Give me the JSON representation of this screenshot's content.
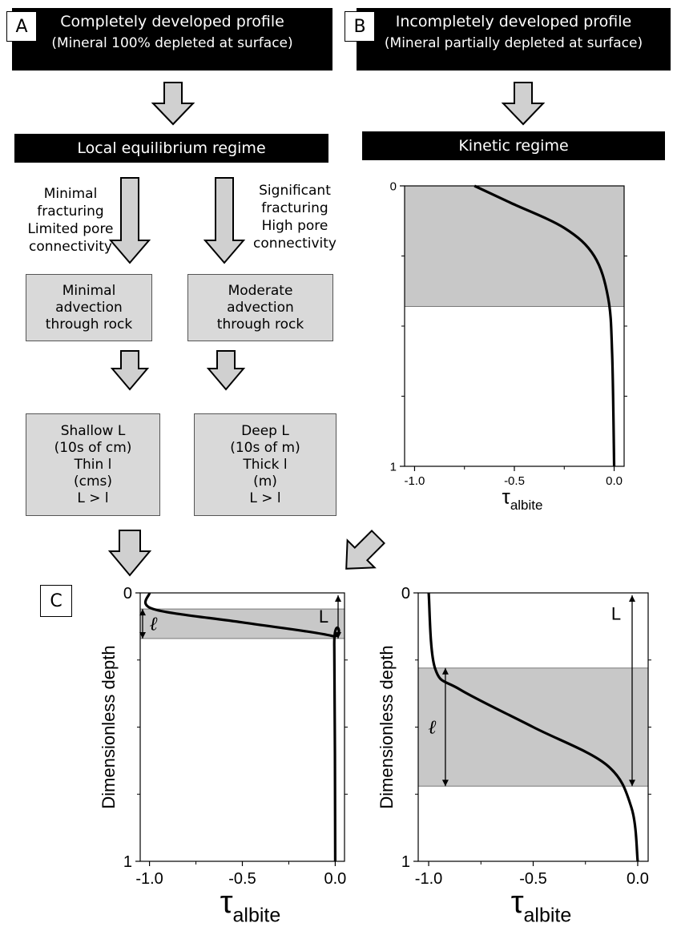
{
  "panel_a": {
    "letter": "A",
    "title": "Completely developed  profile",
    "subtitle": "(Mineral 100% depleted at surface)",
    "regime": "Local equilibrium regime",
    "left_condition": [
      "Minimal",
      "fracturing",
      "Limited pore",
      "connectivity"
    ],
    "right_condition": [
      "Significant",
      "fracturing",
      "High pore",
      "connectivity"
    ],
    "left_advection": [
      "Minimal",
      "advection",
      "through rock"
    ],
    "right_advection": [
      "Moderate",
      "advection",
      "through rock"
    ],
    "left_result": [
      "Shallow L",
      "(10s of cm)",
      "Thin l",
      "(cms)",
      "L > l"
    ],
    "right_result": [
      "Deep L",
      "(10s of m)",
      "Thick  l",
      "(m)",
      "L > l"
    ]
  },
  "panel_b": {
    "letter": "B",
    "title": "Incompletely developed  profile",
    "subtitle": "(Mineral partially depleted at surface)",
    "regime": "Kinetic  regime"
  },
  "panel_c": {
    "letter": "C"
  },
  "colors": {
    "shade": "#c8c8c8",
    "box_fill": "#d9d9d9",
    "arrow_fill": "#d0d0d0",
    "bar": "#000000"
  },
  "chart_data": [
    {
      "type": "line",
      "panel": "B",
      "xlabel": "τalbite",
      "xlim": [
        -1.05,
        0.05
      ],
      "ylim": [
        0,
        1
      ],
      "x_ticks": [
        "-1.0",
        "-0.5",
        "0.0"
      ],
      "y_ticks": [
        "0",
        "1"
      ],
      "shaded_depth_range": [
        0,
        0.43
      ],
      "series": [
        {
          "x": [
            -0.7,
            -0.52,
            -0.25,
            -0.1,
            -0.03,
            -0.01,
            0.0
          ],
          "y": [
            0,
            0.06,
            0.15,
            0.25,
            0.4,
            0.6,
            1.0
          ]
        }
      ]
    },
    {
      "type": "line",
      "panel": "C-left",
      "xlabel": "τalbite",
      "ylabel": "Dimensionless depth",
      "xlim": [
        -1.05,
        0.05
      ],
      "ylim": [
        0,
        1
      ],
      "x_ticks": [
        "-1.0",
        "-0.5",
        "0.0"
      ],
      "y_ticks": [
        "0",
        "1"
      ],
      "shaded_depth_range": [
        0.06,
        0.17
      ],
      "annotations": {
        "L": "L",
        "l": "ℓ"
      },
      "series": [
        {
          "x": [
            -1.0,
            -0.98,
            -0.5,
            -0.02,
            -0.005,
            0.0
          ],
          "y": [
            0,
            0.06,
            0.11,
            0.16,
            0.2,
            1.0
          ]
        }
      ]
    },
    {
      "type": "line",
      "panel": "C-right",
      "xlabel": "τalbite",
      "ylabel": "Dimensionless depth",
      "xlim": [
        -1.05,
        0.05
      ],
      "ylim": [
        0,
        1
      ],
      "x_ticks": [
        "-1.0",
        "-0.5",
        "0.0"
      ],
      "y_ticks": [
        "0",
        "1"
      ],
      "shaded_depth_range": [
        0.28,
        0.72
      ],
      "annotations": {
        "L": "L",
        "l": "ℓ"
      },
      "series": [
        {
          "x": [
            -1.0,
            -0.97,
            -0.85,
            -0.5,
            -0.15,
            -0.03,
            0.0
          ],
          "y": [
            0,
            0.28,
            0.36,
            0.5,
            0.64,
            0.8,
            1.0
          ]
        }
      ]
    }
  ]
}
